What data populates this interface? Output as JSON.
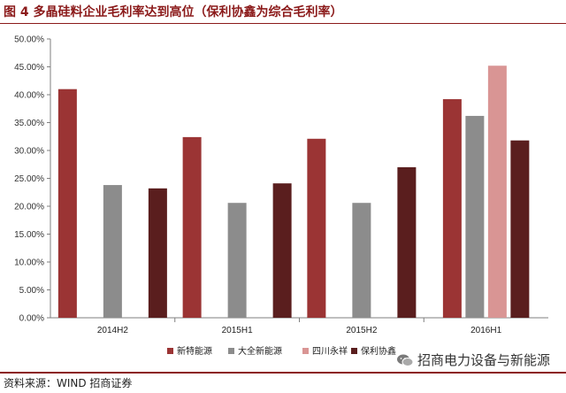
{
  "header": {
    "title": "图 4  多晶硅料企业毛利率达到高位（保利协鑫为综合毛利率）"
  },
  "footer": {
    "source": "资料来源：WIND  招商证券"
  },
  "watermark": {
    "text": "招商电力设备与新能源",
    "icon": "wechat-icon"
  },
  "colors": {
    "新特能源": "#9b3434",
    "大全新能源": "#8c8c8c",
    "四川永祥": "#d99594",
    "保利协鑫": "#5a1e1e",
    "axis": "#7f7f7f",
    "grid": "#d9d9d9",
    "brand": "#8b1a1a"
  },
  "chart_data": {
    "type": "bar",
    "title": "",
    "xlabel": "",
    "ylabel": "",
    "categories": [
      "2014H2",
      "2015H1",
      "2015H2",
      "2016H1"
    ],
    "series": [
      {
        "name": "新特能源",
        "values": [
          41.0,
          32.4,
          32.1,
          39.2
        ]
      },
      {
        "name": "大全新能源",
        "values": [
          23.8,
          20.6,
          20.6,
          36.2
        ]
      },
      {
        "name": "四川永祥",
        "values": [
          null,
          null,
          null,
          45.2
        ]
      },
      {
        "name": "保利协鑫",
        "values": [
          23.2,
          24.1,
          27.0,
          31.8
        ]
      }
    ],
    "ylim": [
      0,
      50
    ],
    "yticks": [
      0,
      5,
      10,
      15,
      20,
      25,
      30,
      35,
      40,
      45,
      50
    ],
    "ytick_labels": [
      "0.00%",
      "5.00%",
      "10.00%",
      "15.00%",
      "20.00%",
      "25.00%",
      "30.00%",
      "35.00%",
      "40.00%",
      "45.00%",
      "50.00%"
    ],
    "grid": false,
    "legend_position": "bottom"
  }
}
